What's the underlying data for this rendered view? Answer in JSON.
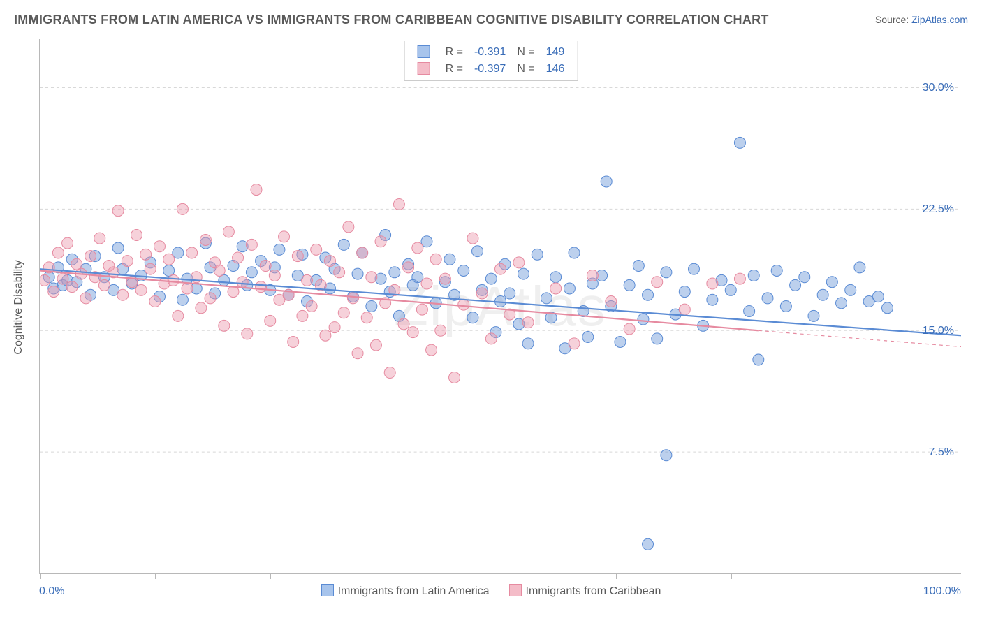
{
  "title": "IMMIGRANTS FROM LATIN AMERICA VS IMMIGRANTS FROM CARIBBEAN COGNITIVE DISABILITY CORRELATION CHART",
  "source_label": "Source:",
  "source_value": "ZipAtlas.com",
  "watermark": "ZipAtlas",
  "yaxis_title": "Cognitive Disability",
  "xaxis_min_label": "0.0%",
  "xaxis_max_label": "100.0%",
  "chart": {
    "type": "scatter",
    "background_color": "#ffffff",
    "grid_color": "#d8d8d8",
    "axis_color": "#b8b8b8",
    "text_color": "#5a5a5a",
    "accent_color": "#3a6db8",
    "marker_radius": 8,
    "marker_opacity": 0.45,
    "line_width": 2.2,
    "xlim": [
      0,
      100
    ],
    "ylim": [
      0,
      33
    ],
    "ytick_values": [
      7.5,
      15.0,
      22.5,
      30.0
    ],
    "ytick_labels": [
      "7.5%",
      "15.0%",
      "22.5%",
      "30.0%"
    ],
    "xtick_values": [
      0,
      12.5,
      25,
      37.5,
      50,
      62.5,
      75,
      87.5,
      100
    ]
  },
  "legend_top": {
    "r_label": "R =",
    "n_label": "N =",
    "rows": [
      {
        "swatch_fill": "#a7c4ec",
        "swatch_stroke": "#5a8bd4",
        "r": "-0.391",
        "n": "149"
      },
      {
        "swatch_fill": "#f4bcc8",
        "swatch_stroke": "#e68aa0",
        "r": "-0.397",
        "n": "146"
      }
    ]
  },
  "legend_bottom": [
    {
      "swatch_fill": "#a7c4ec",
      "swatch_stroke": "#5a8bd4",
      "label": "Immigrants from Latin America"
    },
    {
      "swatch_fill": "#f4bcc8",
      "swatch_stroke": "#e68aa0",
      "label": "Immigrants from Caribbean"
    }
  ],
  "series": [
    {
      "name": "Immigrants from Latin America",
      "color_fill": "rgba(106,151,214,0.45)",
      "color_stroke": "#5a8bd4",
      "trend": {
        "x1": 0,
        "y1": 18.8,
        "x2": 100,
        "y2": 14.7,
        "extend_from_x": 100,
        "dash": false
      },
      "points": [
        [
          1,
          18.3
        ],
        [
          1.5,
          17.6
        ],
        [
          2,
          18.9
        ],
        [
          2.5,
          17.8
        ],
        [
          3,
          18.1
        ],
        [
          3.5,
          19.4
        ],
        [
          4,
          18.0
        ],
        [
          5,
          18.8
        ],
        [
          5.5,
          17.2
        ],
        [
          6,
          19.6
        ],
        [
          7,
          18.3
        ],
        [
          8,
          17.5
        ],
        [
          8.5,
          20.1
        ],
        [
          9,
          18.8
        ],
        [
          10,
          17.9
        ],
        [
          11,
          18.4
        ],
        [
          12,
          19.2
        ],
        [
          13,
          17.1
        ],
        [
          14,
          18.7
        ],
        [
          15,
          19.8
        ],
        [
          15.5,
          16.9
        ],
        [
          16,
          18.2
        ],
        [
          17,
          17.6
        ],
        [
          18,
          20.4
        ],
        [
          18.5,
          18.9
        ],
        [
          19,
          17.3
        ],
        [
          20,
          18.1
        ],
        [
          21,
          19.0
        ],
        [
          22,
          20.2
        ],
        [
          22.5,
          17.8
        ],
        [
          23,
          18.6
        ],
        [
          24,
          19.3
        ],
        [
          25,
          17.5
        ],
        [
          25.5,
          18.9
        ],
        [
          26,
          20.0
        ],
        [
          27,
          17.2
        ],
        [
          28,
          18.4
        ],
        [
          28.5,
          19.7
        ],
        [
          29,
          16.8
        ],
        [
          30,
          18.1
        ],
        [
          31,
          19.5
        ],
        [
          31.5,
          17.6
        ],
        [
          32,
          18.8
        ],
        [
          33,
          20.3
        ],
        [
          34,
          17.1
        ],
        [
          34.5,
          18.5
        ],
        [
          35,
          19.8
        ],
        [
          36,
          16.5
        ],
        [
          37,
          18.2
        ],
        [
          37.5,
          20.9
        ],
        [
          38,
          17.4
        ],
        [
          38.5,
          18.6
        ],
        [
          39,
          15.9
        ],
        [
          40,
          19.1
        ],
        [
          40.5,
          17.8
        ],
        [
          41,
          18.3
        ],
        [
          42,
          20.5
        ],
        [
          43,
          16.7
        ],
        [
          44,
          18.0
        ],
        [
          44.5,
          19.4
        ],
        [
          45,
          17.2
        ],
        [
          46,
          18.7
        ],
        [
          47,
          15.8
        ],
        [
          47.5,
          19.9
        ],
        [
          48,
          17.5
        ],
        [
          49,
          18.2
        ],
        [
          49.5,
          14.9
        ],
        [
          50,
          16.8
        ],
        [
          50.5,
          19.1
        ],
        [
          51,
          17.3
        ],
        [
          52,
          15.4
        ],
        [
          52.5,
          18.5
        ],
        [
          53,
          14.2
        ],
        [
          54,
          19.7
        ],
        [
          55,
          17.0
        ],
        [
          55.5,
          15.8
        ],
        [
          56,
          18.3
        ],
        [
          57,
          13.9
        ],
        [
          57.5,
          17.6
        ],
        [
          58,
          19.8
        ],
        [
          59,
          16.2
        ],
        [
          59.5,
          14.6
        ],
        [
          60,
          17.9
        ],
        [
          61,
          18.4
        ],
        [
          61.5,
          24.2
        ],
        [
          62,
          16.5
        ],
        [
          63,
          14.3
        ],
        [
          64,
          17.8
        ],
        [
          65,
          19.0
        ],
        [
          65.5,
          15.7
        ],
        [
          66,
          17.2
        ],
        [
          67,
          14.5
        ],
        [
          68,
          18.6
        ],
        [
          69,
          16.0
        ],
        [
          70,
          17.4
        ],
        [
          71,
          18.8
        ],
        [
          72,
          15.3
        ],
        [
          73,
          16.9
        ],
        [
          74,
          18.1
        ],
        [
          75,
          17.5
        ],
        [
          76,
          26.6
        ],
        [
          77,
          16.2
        ],
        [
          77.5,
          18.4
        ],
        [
          78,
          13.2
        ],
        [
          79,
          17.0
        ],
        [
          80,
          18.7
        ],
        [
          81,
          16.5
        ],
        [
          82,
          17.8
        ],
        [
          83,
          18.3
        ],
        [
          84,
          15.9
        ],
        [
          85,
          17.2
        ],
        [
          86,
          18.0
        ],
        [
          87,
          16.7
        ],
        [
          88,
          17.5
        ],
        [
          89,
          18.9
        ],
        [
          90,
          16.8
        ],
        [
          91,
          17.1
        ],
        [
          92,
          16.4
        ]
      ]
    },
    {
      "name": "Immigrants from Caribbean",
      "color_fill": "rgba(236,152,172,0.45)",
      "color_stroke": "#e68aa0",
      "trend": {
        "x1": 0,
        "y1": 18.7,
        "x2": 78,
        "y2": 15.0,
        "extend_from_x": 78,
        "extend_to_x": 100,
        "extend_to_y": 14.0,
        "dash": true
      },
      "points": [
        [
          0.5,
          18.1
        ],
        [
          1,
          18.9
        ],
        [
          1.5,
          17.4
        ],
        [
          2,
          19.8
        ],
        [
          2.5,
          18.2
        ],
        [
          3,
          20.4
        ],
        [
          3.5,
          17.7
        ],
        [
          4,
          19.1
        ],
        [
          4.5,
          18.5
        ],
        [
          5,
          17.0
        ],
        [
          5.5,
          19.6
        ],
        [
          6,
          18.3
        ],
        [
          6.5,
          20.7
        ],
        [
          7,
          17.8
        ],
        [
          7.5,
          19.0
        ],
        [
          8,
          18.6
        ],
        [
          8.5,
          22.4
        ],
        [
          9,
          17.2
        ],
        [
          9.5,
          19.3
        ],
        [
          10,
          18.0
        ],
        [
          10.5,
          20.9
        ],
        [
          11,
          17.5
        ],
        [
          11.5,
          19.7
        ],
        [
          12,
          18.8
        ],
        [
          12.5,
          16.8
        ],
        [
          13,
          20.2
        ],
        [
          13.5,
          17.9
        ],
        [
          14,
          19.4
        ],
        [
          14.5,
          18.1
        ],
        [
          15,
          15.9
        ],
        [
          15.5,
          22.5
        ],
        [
          16,
          17.6
        ],
        [
          16.5,
          19.8
        ],
        [
          17,
          18.3
        ],
        [
          17.5,
          16.4
        ],
        [
          18,
          20.6
        ],
        [
          18.5,
          17.0
        ],
        [
          19,
          19.2
        ],
        [
          19.5,
          18.7
        ],
        [
          20,
          15.3
        ],
        [
          20.5,
          21.1
        ],
        [
          21,
          17.4
        ],
        [
          21.5,
          19.5
        ],
        [
          22,
          18.0
        ],
        [
          22.5,
          14.8
        ],
        [
          23,
          20.3
        ],
        [
          23.5,
          23.7
        ],
        [
          24,
          17.7
        ],
        [
          24.5,
          19.0
        ],
        [
          25,
          15.6
        ],
        [
          25.5,
          18.4
        ],
        [
          26,
          16.9
        ],
        [
          26.5,
          20.8
        ],
        [
          27,
          17.2
        ],
        [
          27.5,
          14.3
        ],
        [
          28,
          19.6
        ],
        [
          28.5,
          15.9
        ],
        [
          29,
          18.1
        ],
        [
          29.5,
          16.5
        ],
        [
          30,
          20.0
        ],
        [
          30.5,
          17.8
        ],
        [
          31,
          14.7
        ],
        [
          31.5,
          19.3
        ],
        [
          32,
          15.2
        ],
        [
          32.5,
          18.6
        ],
        [
          33,
          16.1
        ],
        [
          33.5,
          21.4
        ],
        [
          34,
          17.0
        ],
        [
          34.5,
          13.6
        ],
        [
          35,
          19.8
        ],
        [
          35.5,
          15.8
        ],
        [
          36,
          18.3
        ],
        [
          36.5,
          14.1
        ],
        [
          37,
          20.5
        ],
        [
          37.5,
          16.7
        ],
        [
          38,
          12.4
        ],
        [
          38.5,
          17.5
        ],
        [
          39,
          22.8
        ],
        [
          39.5,
          15.4
        ],
        [
          40,
          18.9
        ],
        [
          40.5,
          14.9
        ],
        [
          41,
          20.1
        ],
        [
          41.5,
          16.3
        ],
        [
          42,
          17.9
        ],
        [
          42.5,
          13.8
        ],
        [
          43,
          19.4
        ],
        [
          43.5,
          15.0
        ],
        [
          44,
          18.2
        ],
        [
          45,
          12.1
        ],
        [
          46,
          16.6
        ],
        [
          47,
          20.7
        ],
        [
          48,
          17.3
        ],
        [
          49,
          14.5
        ],
        [
          50,
          18.8
        ],
        [
          51,
          16.0
        ],
        [
          52,
          19.2
        ],
        [
          53,
          15.5
        ],
        [
          56,
          17.6
        ],
        [
          58,
          14.2
        ],
        [
          60,
          18.4
        ],
        [
          62,
          16.8
        ],
        [
          64,
          15.1
        ],
        [
          67,
          18.0
        ],
        [
          70,
          16.3
        ],
        [
          73,
          17.9
        ],
        [
          76,
          18.2
        ]
      ]
    }
  ],
  "outliers": {
    "blue_extra": [
      [
        68,
        7.3
      ],
      [
        66,
        1.8
      ]
    ]
  }
}
